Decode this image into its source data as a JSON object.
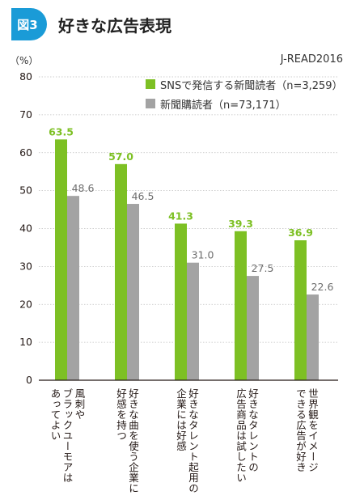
{
  "header": {
    "badge": "図3",
    "title": "好きな広告表現"
  },
  "unit_label": "（%）",
  "source": "J-READ2016",
  "colors": {
    "series1": "#7dc024",
    "series2": "#a3a3a3",
    "badge": "#1a9bd7",
    "axis": "#231815",
    "grid": "#bfbfbf"
  },
  "chart_data": {
    "type": "bar",
    "categories": [
      [
        "風刺や",
        "ブラックユーモアは",
        "あってよい"
      ],
      [
        "好きな曲を使う企業に",
        "好感を持つ"
      ],
      [
        "好きなタレント起用の",
        "企業には好感"
      ],
      [
        "好きなタレントの",
        "広告商品は試したい"
      ],
      [
        "世界観をイメージ",
        "できる広告が好き"
      ]
    ],
    "series": [
      {
        "name": "SNSで発信する新聞読者（n=3,259）",
        "values": [
          63.5,
          57.0,
          41.3,
          39.3,
          36.9
        ],
        "labels": [
          "63.5",
          "57.0",
          "41.3",
          "39.3",
          "36.9"
        ]
      },
      {
        "name": "新聞購読者（n=73,171）",
        "values": [
          48.6,
          46.5,
          31.0,
          27.5,
          22.6
        ],
        "labels": [
          "48.6",
          "46.5",
          "31.0",
          "27.5",
          "22.6"
        ]
      }
    ],
    "yticks": [
      "0",
      "10",
      "20",
      "30",
      "40",
      "50",
      "60",
      "70",
      "80"
    ],
    "ylim": [
      0,
      80
    ],
    "grid": true,
    "legend": "top-right"
  }
}
